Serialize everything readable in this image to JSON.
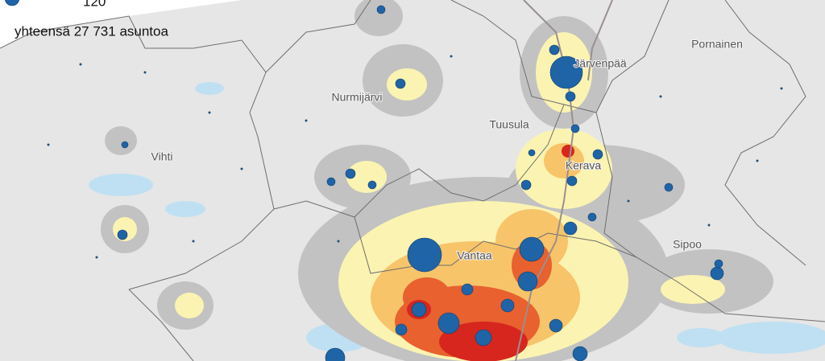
{
  "legend": {
    "size_label": 120,
    "total": "yhteensä 27 731 asuntoa"
  },
  "places": [
    "Pornainen",
    "Järvenpää",
    "Nurmijärvi",
    "Tuusula",
    "Vihti",
    "Kerava",
    "Vantaa",
    "Sipoo"
  ]
}
